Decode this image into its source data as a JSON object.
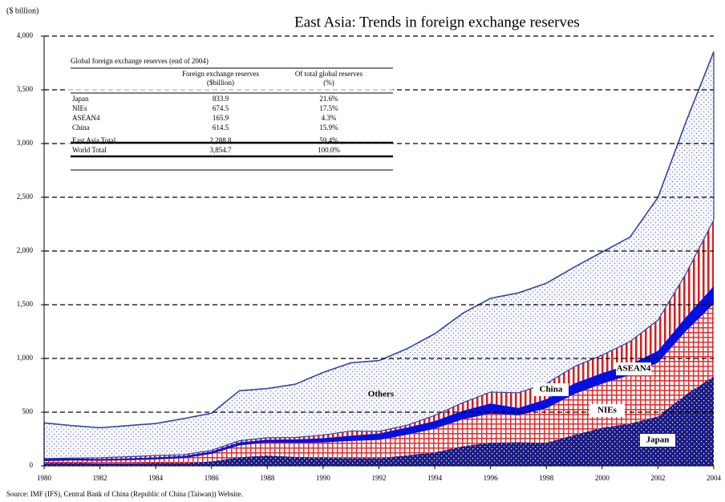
{
  "chart_data": {
    "type": "stacked_area",
    "title": "East Asia: Trends in foreign exchange reserves",
    "y_label": "($ billion)",
    "source": "Source: IMF (IFS), Central Bank of China (Republic of China (Taiwan)) Website.",
    "x": [
      1980,
      1981,
      1982,
      1983,
      1984,
      1985,
      1986,
      1987,
      1988,
      1989,
      1990,
      1991,
      1992,
      1993,
      1994,
      1995,
      1996,
      1997,
      1998,
      1999,
      2000,
      2001,
      2002,
      2003,
      2004
    ],
    "xlim": [
      1980,
      2004
    ],
    "xticks": [
      1980,
      1982,
      1984,
      1986,
      1988,
      1990,
      1992,
      1994,
      1996,
      1998,
      2000,
      2002,
      2004
    ],
    "ylim": [
      0,
      4000
    ],
    "yticks": [
      0,
      500,
      {
        "value": 1000,
        "label": "1,000"
      },
      {
        "value": 1500,
        "label": "1,500"
      },
      {
        "value": 2000,
        "label": "2,000"
      },
      {
        "value": 2500,
        "label": "2,500"
      },
      {
        "value": 3000,
        "label": "3,000"
      },
      {
        "value": 3500,
        "label": "3,500"
      },
      {
        "value": 4000,
        "label": "4,000"
      }
    ],
    "grid": true,
    "series": [
      {
        "name": "Japan",
        "color": "#1c1c84",
        "values": [
          25,
          28,
          23,
          24,
          26,
          27,
          42,
          81,
          97,
          84,
          78,
          72,
          72,
          99,
          126,
          183,
          217,
          220,
          216,
          288,
          355,
          395,
          461,
          664,
          834
        ]
      },
      {
        "name": "NIEs",
        "color": "#e82828",
        "values": [
          20,
          22,
          25,
          28,
          35,
          45,
          70,
          110,
          120,
          130,
          140,
          160,
          170,
          190,
          220,
          250,
          270,
          250,
          320,
          380,
          410,
          450,
          500,
          590,
          675
        ]
      },
      {
        "name": "ASEAN4",
        "color": "#0010e0",
        "values": [
          20,
          18,
          17,
          18,
          19,
          20,
          22,
          28,
          27,
          33,
          40,
          50,
          60,
          68,
          72,
          80,
          95,
          70,
          85,
          100,
          100,
          100,
          110,
          130,
          166
        ]
      },
      {
        "name": "China",
        "color": "#e01818",
        "values": [
          3,
          5,
          11,
          15,
          17,
          12,
          11,
          15,
          18,
          17,
          29,
          43,
          19,
          21,
          52,
          74,
          105,
          140,
          145,
          155,
          166,
          212,
          286,
          403,
          615
        ]
      },
      {
        "name": "Others",
        "color": "#3040a0",
        "values": [
          332,
          302,
          279,
          290,
          298,
          336,
          345,
          466,
          458,
          496,
          583,
          635,
          659,
          712,
          760,
          833,
          873,
          930,
          934,
          927,
          959,
          973,
          1143,
          1413,
          1565
        ]
      }
    ]
  },
  "table": {
    "title": "Global foreign exchange reserves (end of 2004)",
    "headers": [
      [
        "Foreign exchange reserves",
        "($billion)"
      ],
      [
        "Of total global reserves",
        "(%)"
      ]
    ],
    "rows": [
      [
        "Japan",
        "833.9",
        "21.6%"
      ],
      [
        "NIEs",
        "674.5",
        "17.5%"
      ],
      [
        "ASEAN4",
        "165.9",
        "4.3%"
      ],
      [
        "China",
        "614.5",
        "15.9%"
      ],
      [
        "East Asia Total",
        "2,288.8",
        "59.4%"
      ],
      [
        "World Total",
        "3,854.7",
        "100.0%"
      ]
    ]
  }
}
